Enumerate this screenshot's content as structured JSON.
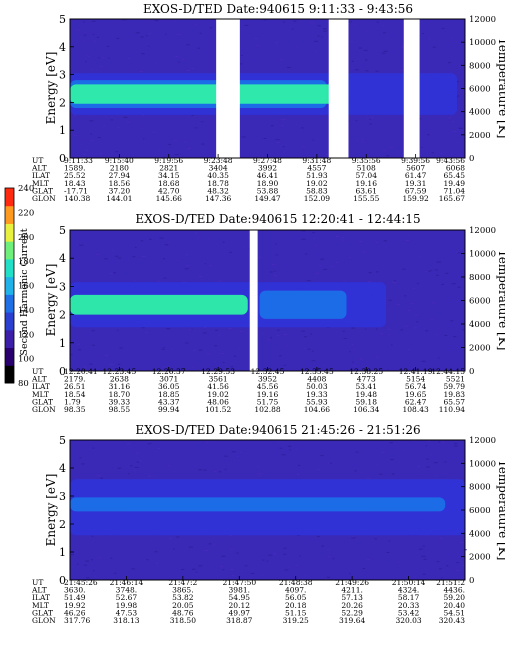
{
  "figure": {
    "colorbar": {
      "label": "Second Harmonic Current",
      "ticks": [
        "80",
        "100",
        "120",
        "140",
        "160",
        "180",
        "200",
        "220",
        "240"
      ],
      "colors": [
        "#000000",
        "#2a006e",
        "#3b1fa8",
        "#2b3fd0",
        "#1f6fe6",
        "#20b2e8",
        "#22e0c8",
        "#6ff07a",
        "#e8f040",
        "#ff9a20",
        "#ff2a10"
      ]
    }
  },
  "chart_data": [
    {
      "type": "heatmap",
      "title": "EXOS-D/TED   Date:940615   9:11:33 - 9:43:56",
      "ylabel": "Energy [eV]",
      "ylabel_right": "Temperature [K]",
      "ylim": [
        0,
        5
      ],
      "yticks": [
        "0",
        "1",
        "2",
        "3",
        "4",
        "5"
      ],
      "ylim_right": [
        0,
        12000
      ],
      "yticks_right": [
        "0",
        "2000",
        "4000",
        "6000",
        "8000",
        "10000",
        "12000"
      ],
      "row_labels": [
        "UT",
        "ALT",
        "ILAT",
        "MLT",
        "GLAT",
        "GLON"
      ],
      "columns": [
        [
          "9:11:33",
          "1589.",
          "25.52",
          "18.43",
          "-17.71",
          "140.38"
        ],
        [
          "9:15:40",
          "2180",
          "27.94",
          "18.56",
          "37.20",
          "144.01"
        ],
        [
          "9:19:56",
          "2821",
          "34.15",
          "18.68",
          "42.70",
          "145.66"
        ],
        [
          "9:23:48",
          "3404",
          "40.35",
          "18.78",
          "48.32",
          "147.36"
        ],
        [
          "9:27:48",
          "3992",
          "46.41",
          "18.90",
          "53.88",
          "149.47"
        ],
        [
          "9:31:48",
          "4557",
          "51.93",
          "19.02",
          "58.83",
          "152.09"
        ],
        [
          "9:35:56",
          "5108",
          "57.04",
          "19.16",
          "63.61",
          "155.55"
        ],
        [
          "9:39:56",
          "5607",
          "61.47",
          "19.31",
          "67.59",
          "159.92"
        ],
        [
          "9:43:56",
          "6068",
          "65.45",
          "19.49",
          "71.04",
          "165.67"
        ]
      ],
      "data_gaps": [
        [
          0.37,
          0.43
        ],
        [
          0.655,
          0.705
        ],
        [
          0.845,
          0.885
        ]
      ],
      "bands": [
        {
          "center": 2.3,
          "half_width": 0.35,
          "level": "cyan-green",
          "x_range": [
            0.0,
            0.67
          ]
        },
        {
          "center": 2.3,
          "half_width": 0.75,
          "level": "blue",
          "x_range": [
            0.0,
            0.98
          ]
        },
        {
          "center": 2.3,
          "half_width": 0.5,
          "level": "light-blue",
          "x_range": [
            0.0,
            0.65
          ]
        }
      ]
    },
    {
      "type": "heatmap",
      "title": "EXOS-D/TED   Date:940615   12:20:41 - 12:44:15",
      "ylabel": "Energy [eV]",
      "ylabel_right": "Temperature [K]",
      "ylim": [
        0,
        5
      ],
      "yticks": [
        "0",
        "1",
        "2",
        "3",
        "4",
        "5"
      ],
      "ylim_right": [
        0,
        12000
      ],
      "yticks_right": [
        "0",
        "2000",
        "4000",
        "6000",
        "8000",
        "10000",
        "12000"
      ],
      "row_labels": [
        "UT",
        "ALT",
        "ILAT",
        "MLT",
        "GLAT",
        "GLON"
      ],
      "columns": [
        [
          "12:20:41",
          "2179.",
          "26.51",
          "18.54",
          "1.79",
          "98.35"
        ],
        [
          "12:23:45",
          "2638",
          "31.16",
          "18.70",
          "39.33",
          "98.55"
        ],
        [
          "12:26:37",
          "3071",
          "36.05",
          "18.85",
          "43.37",
          "99.94"
        ],
        [
          "12:29:53",
          "3561",
          "41.56",
          "19.02",
          "48.06",
          "101.52"
        ],
        [
          "12:32:45",
          "3952",
          "45.56",
          "19.16",
          "51.75",
          "102.88"
        ],
        [
          "12:35:45",
          "4408",
          "50.03",
          "19.33",
          "55.93",
          "104.66"
        ],
        [
          "12:38:25",
          "4773",
          "53.41",
          "19.48",
          "59.18",
          "106.34"
        ],
        [
          "12:41:19",
          "5154",
          "56.74",
          "19.65",
          "62.47",
          "108.43"
        ],
        [
          "12:44:15",
          "5521",
          "59.79",
          "19.83",
          "65.57",
          "110.94"
        ]
      ],
      "data_gaps": [
        [
          0.455,
          0.475
        ]
      ],
      "bands": [
        {
          "center": 2.35,
          "half_width": 0.35,
          "level": "cyan-green",
          "x_range": [
            0.0,
            0.45
          ]
        },
        {
          "center": 2.35,
          "half_width": 0.5,
          "level": "light-blue",
          "x_range": [
            0.48,
            0.7
          ]
        },
        {
          "center": 2.35,
          "half_width": 0.8,
          "level": "blue",
          "x_range": [
            0.0,
            0.8
          ]
        }
      ]
    },
    {
      "type": "heatmap",
      "title": "EXOS-D/TED   Date:940615   21:45:26 - 21:51:26",
      "ylabel": "Energy [eV]",
      "ylabel_right": "Temperature [K]",
      "ylim": [
        0,
        5
      ],
      "yticks": [
        "0",
        "1",
        "2",
        "3",
        "4",
        "5"
      ],
      "ylim_right": [
        0,
        12000
      ],
      "yticks_right": [
        "0",
        "2000",
        "4000",
        "6000",
        "8000",
        "10000",
        "12000"
      ],
      "row_labels": [
        "UT",
        "ALT",
        "ILAT",
        "MLT",
        "GLAT",
        "GLON"
      ],
      "columns": [
        [
          "21:45:26",
          "3630.",
          "51.49",
          "19.92",
          "46.26",
          "317.76"
        ],
        [
          "21:46:14",
          "3748.",
          "52.67",
          "19.98",
          "47.53",
          "318.13"
        ],
        [
          "21:47:2",
          "3865.",
          "53.82",
          "20.05",
          "48.76",
          "318.50"
        ],
        [
          "21:47:50",
          "3981.",
          "54.95",
          "20.12",
          "49.97",
          "318.87"
        ],
        [
          "21:48:38",
          "4097.",
          "56.05",
          "20.18",
          "51.15",
          "319.25"
        ],
        [
          "21:49:26",
          "4211.",
          "57.13",
          "20.26",
          "52.29",
          "319.64"
        ],
        [
          "21:50:14",
          "4324.",
          "58.17",
          "20.33",
          "53.42",
          "320.03"
        ],
        [
          "21:51:2",
          "4436.",
          "59.20",
          "20.40",
          "54.51",
          "320.43"
        ]
      ],
      "data_gaps": [],
      "bands": [
        {
          "center": 2.7,
          "half_width": 0.25,
          "level": "light-blue",
          "x_range": [
            0.0,
            0.95
          ]
        },
        {
          "center": 2.6,
          "half_width": 1.0,
          "level": "blue",
          "x_range": [
            0.0,
            1.0
          ]
        }
      ]
    }
  ]
}
